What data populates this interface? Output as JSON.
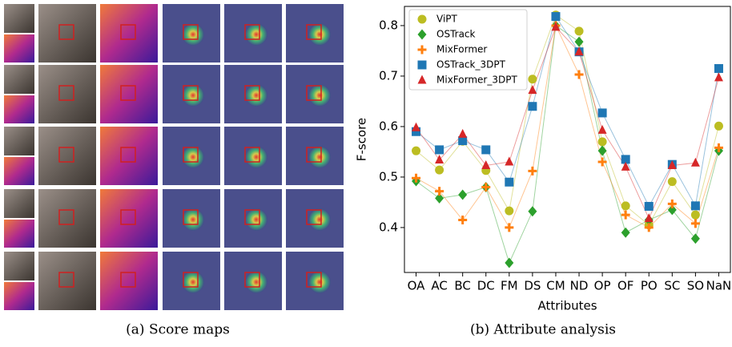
{
  "chart_data": {
    "type": "line",
    "ylabel": "F-score",
    "xlabel": "Attributes",
    "categories": [
      "OA",
      "AC",
      "BC",
      "DC",
      "FM",
      "DS",
      "CM",
      "ND",
      "OP",
      "OF",
      "PO",
      "SC",
      "SO",
      "NaN"
    ],
    "ylim": [
      0.311,
      0.838
    ],
    "yticks": [
      0.4,
      0.5,
      0.6,
      0.7,
      0.8
    ],
    "legend": "upper left",
    "series": [
      {
        "name": "ViPT",
        "color": "#bcbd22",
        "marker": "circle",
        "values": [
          0.552,
          0.514,
          0.571,
          0.513,
          0.433,
          0.694,
          0.821,
          0.789,
          0.57,
          0.443,
          0.405,
          0.491,
          0.425,
          0.601
        ]
      },
      {
        "name": "OSTrack",
        "color": "#2ca02c",
        "marker": "diamond",
        "values": [
          0.492,
          0.458,
          0.465,
          0.48,
          0.33,
          0.432,
          0.8,
          0.768,
          0.552,
          0.39,
          0.415,
          0.435,
          0.378,
          0.552
        ]
      },
      {
        "name": "MixFormer",
        "color": "#ff7f0e",
        "marker": "plus",
        "values": [
          0.498,
          0.472,
          0.415,
          0.48,
          0.4,
          0.512,
          0.8,
          0.703,
          0.53,
          0.425,
          0.4,
          0.447,
          0.408,
          0.558
        ]
      },
      {
        "name": "OSTrack_3DPT",
        "color": "#1f77b4",
        "marker": "square",
        "values": [
          0.59,
          0.554,
          0.572,
          0.554,
          0.49,
          0.64,
          0.818,
          0.748,
          0.627,
          0.535,
          0.442,
          0.525,
          0.443,
          0.715
        ]
      },
      {
        "name": "MixFormer_3DPT",
        "color": "#d62728",
        "marker": "triangle",
        "values": [
          0.598,
          0.534,
          0.585,
          0.523,
          0.53,
          0.672,
          0.797,
          0.748,
          0.593,
          0.52,
          0.418,
          0.523,
          0.528,
          0.697
        ]
      }
    ]
  },
  "captions": [
    "(a) Score maps",
    "(b) Attribute analysis"
  ]
}
